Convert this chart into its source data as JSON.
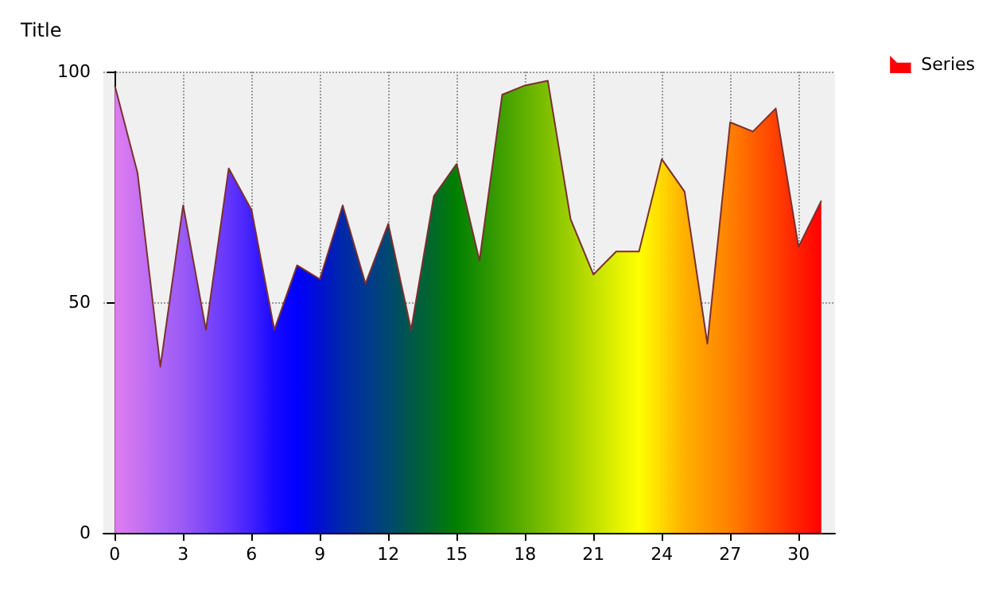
{
  "chart_data": {
    "type": "area",
    "title": "Title",
    "x": [
      0,
      1,
      2,
      3,
      4,
      5,
      6,
      7,
      8,
      9,
      10,
      11,
      12,
      13,
      14,
      15,
      16,
      17,
      18,
      19,
      20,
      21,
      22,
      23,
      24,
      25,
      26,
      27,
      28,
      29,
      30,
      31
    ],
    "series": [
      {
        "name": "Series",
        "values": [
          97,
          78,
          36,
          71,
          44,
          79,
          70,
          44,
          58,
          55,
          71,
          54,
          67,
          44,
          73,
          80,
          59,
          95,
          97,
          98,
          68,
          56,
          61,
          61,
          81,
          74,
          41,
          89,
          87,
          92,
          62,
          72
        ],
        "colors": [
          "#e07cf0",
          "#c872f2",
          "#b066f4",
          "#9a5af6",
          "#7e48f8",
          "#6436fc",
          "#4020fe",
          "#1808ff",
          "#0000ff",
          "#0010d0",
          "#0028a8",
          "#003890",
          "#004870",
          "#005848",
          "#006a28",
          "#008000",
          "#209000",
          "#40a000",
          "#60b000",
          "#80c000",
          "#a0d000",
          "#c0e000",
          "#e0f000",
          "#ffff00",
          "#ffd800",
          "#ffb000",
          "#ff9800",
          "#ff8000",
          "#ff6000",
          "#ff4000",
          "#ff2000",
          "#ff0000"
        ]
      }
    ],
    "xlim": [
      -0.5,
      31.6
    ],
    "xticks": [
      0,
      3,
      6,
      9,
      12,
      15,
      18,
      21,
      24,
      27,
      30
    ],
    "ylim": [
      0,
      100
    ],
    "yticks": [
      0,
      50,
      100
    ],
    "grid": true,
    "legend": "top right",
    "marker": "none",
    "line_style": "solid"
  }
}
